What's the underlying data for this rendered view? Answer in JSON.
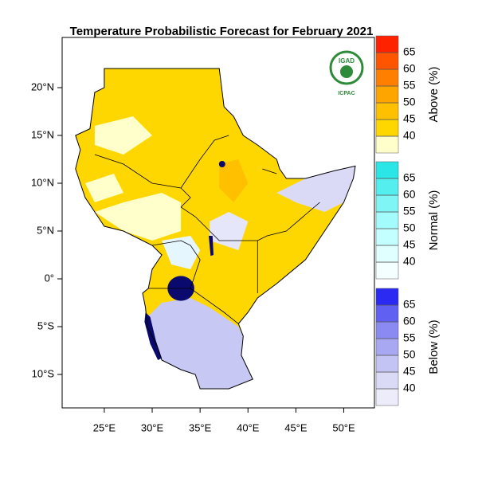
{
  "map": {
    "title": "Temperature Probabilistic Forecast for February 2021",
    "xlim": [
      20.6,
      53.2
    ],
    "ylim": [
      -13.5,
      25.25
    ],
    "xticks": [
      {
        "value": 25,
        "label": "25°E"
      },
      {
        "value": 30,
        "label": "30°E"
      },
      {
        "value": 35,
        "label": "35°E"
      },
      {
        "value": 40,
        "label": "40°E"
      },
      {
        "value": 45,
        "label": "45°E"
      },
      {
        "value": 50,
        "label": "50°E"
      }
    ],
    "yticks": [
      {
        "value": 20,
        "label": "20°N"
      },
      {
        "value": 15,
        "label": "15°N"
      },
      {
        "value": 10,
        "label": "10°N"
      },
      {
        "value": 5,
        "label": "5°N"
      },
      {
        "value": 0,
        "label": "0°"
      },
      {
        "value": -5,
        "label": "5°S"
      },
      {
        "value": -10,
        "label": "10°S"
      }
    ],
    "logo": {
      "name": "IGAD",
      "org": "ICPAC"
    }
  },
  "colorbars": [
    {
      "title": "Above (%)",
      "ticks": [
        40,
        45,
        50,
        55,
        60,
        65
      ],
      "colors": [
        "#ffffcc",
        "#ffd700",
        "#ffc000",
        "#ffa500",
        "#ff8000",
        "#ff5500",
        "#ff2200"
      ]
    },
    {
      "title": "Normal (%)",
      "ticks": [
        40,
        45,
        50,
        55,
        60,
        65
      ],
      "colors": [
        "#f4ffff",
        "#e0ffff",
        "#c4ffff",
        "#a4fbfb",
        "#80f5f5",
        "#55eeee",
        "#2ae6e6"
      ]
    },
    {
      "title": "Below (%)",
      "ticks": [
        40,
        45,
        50,
        55,
        60,
        65
      ],
      "colors": [
        "#ececfa",
        "#dadaf7",
        "#c4c4f4",
        "#a8a8f2",
        "#8a8af2",
        "#6060f2",
        "#2a2af2"
      ]
    }
  ]
}
